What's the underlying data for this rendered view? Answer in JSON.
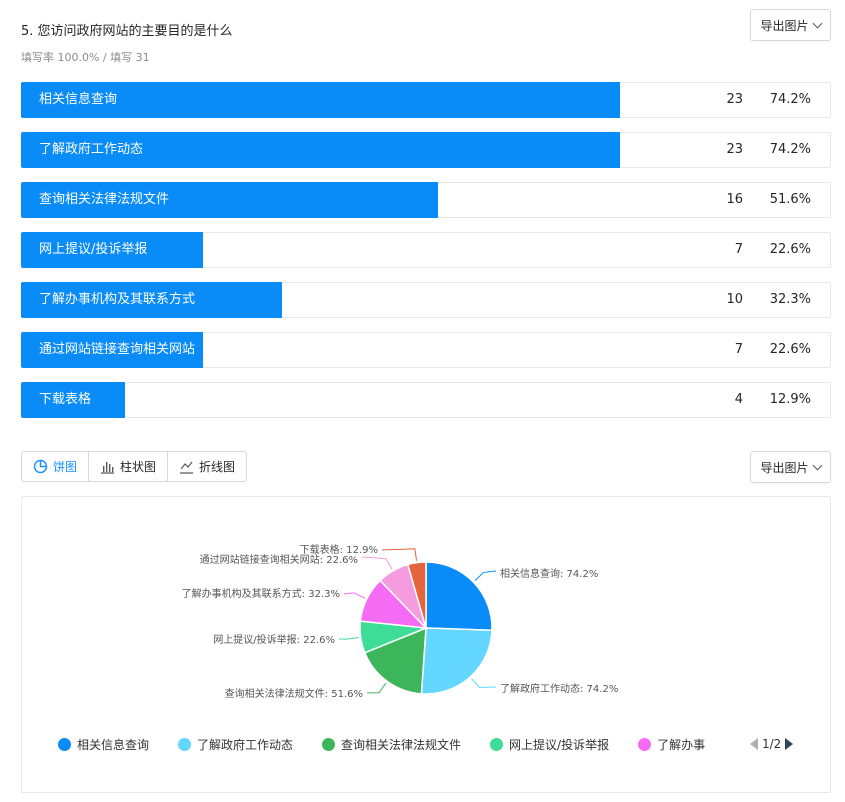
{
  "question": {
    "title": "5. 您访问政府网站的主要目的是什么",
    "meta": "填写率 100.0% / 填写 31"
  },
  "export_label": "导出图片",
  "tabs": [
    {
      "label": "饼图",
      "icon": "pie-chart-icon",
      "active": true
    },
    {
      "label": "柱状图",
      "icon": "bar-chart-icon",
      "active": false
    },
    {
      "label": "折线图",
      "icon": "line-chart-icon",
      "active": false
    }
  ],
  "pager": {
    "text": "1/2"
  },
  "colors": {
    "bar": "#0a8cf8",
    "series": [
      "#0a8cf8",
      "#63d7ff",
      "#3cb55b",
      "#3ddc97",
      "#f56bf4",
      "#f59be0",
      "#e4643c"
    ]
  },
  "chart_data": {
    "type": "pie",
    "categories": [
      "相关信息查询",
      "了解政府工作动态",
      "查询相关法律法规文件",
      "网上提议/投诉举报",
      "了解办事机构及其联系方式",
      "通过网站链接查询相关网站",
      "下载表格"
    ],
    "counts": [
      23,
      23,
      16,
      7,
      10,
      7,
      4
    ],
    "percent_labels": [
      "74.2%",
      "74.2%",
      "51.6%",
      "22.6%",
      "32.3%",
      "22.6%",
      "12.9%"
    ],
    "slice_labels": [
      "相关信息查询: 74.2%",
      "了解政府工作动态: 74.2%",
      "查询相关法律法规文件: 51.6%",
      "网上提议/投诉举报: 22.6%",
      "了解办事机构及其联系方式: 32.3%",
      "通过网站链接查询相关网站: 22.6%",
      "下载表格: 12.9%"
    ],
    "legend_visible": [
      "相关信息查询",
      "了解政府工作动态",
      "查询相关法律法规文件",
      "网上提议/投诉举报",
      "了解办事"
    ],
    "legend_position": "bottom"
  }
}
